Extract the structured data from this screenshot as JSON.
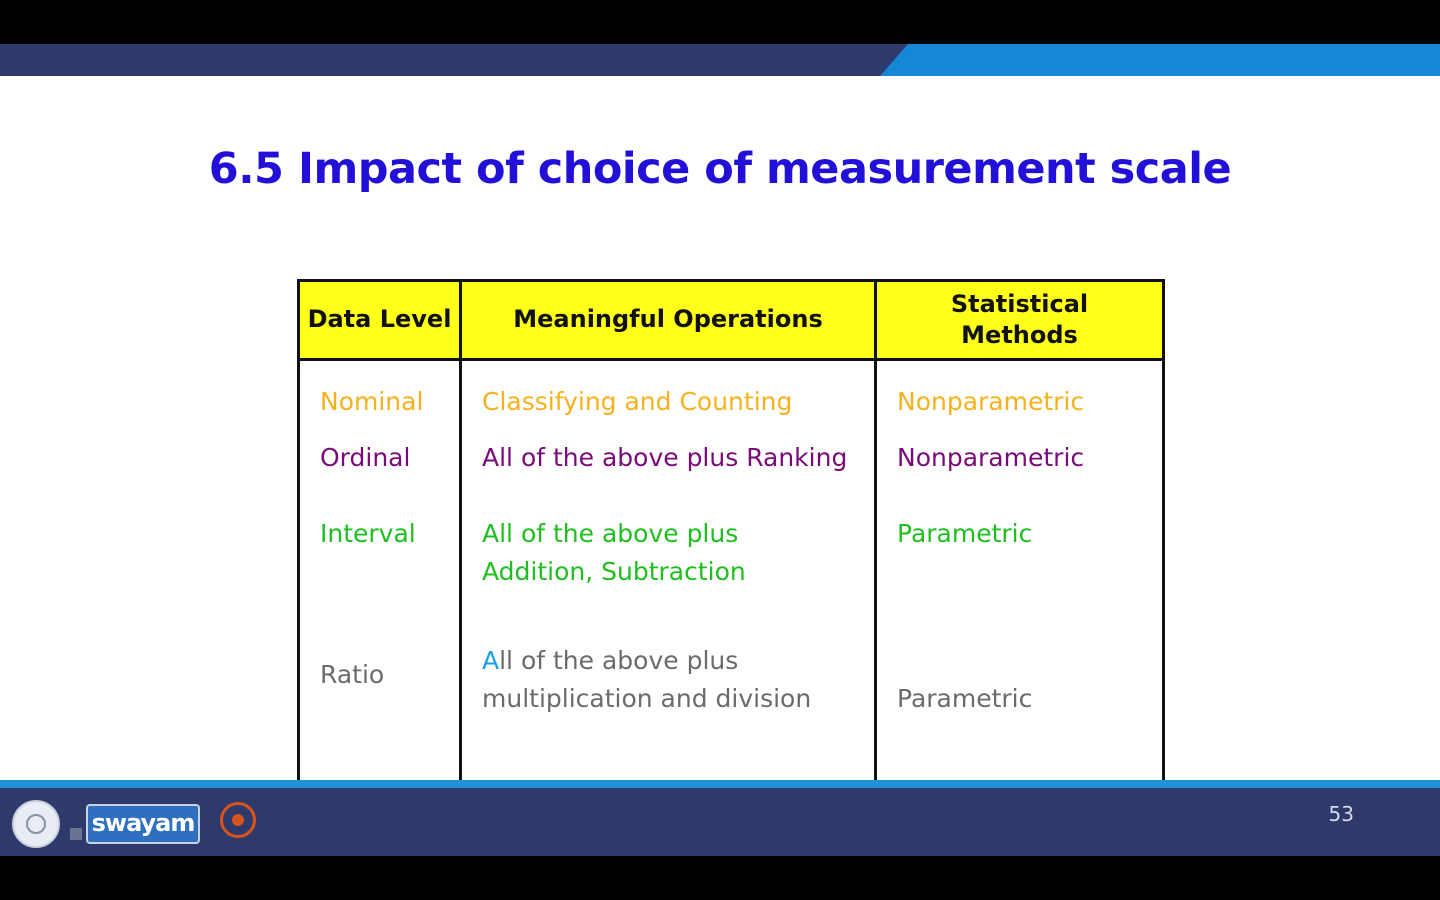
{
  "slide": {
    "title": "6.5 Impact of choice of measurement scale",
    "page_number": "53"
  },
  "table": {
    "headers": {
      "data_level": "Data Level",
      "operations": "Meaningful Operations",
      "methods_line1": "Statistical",
      "methods_line2": "Methods"
    },
    "rows": [
      {
        "level": "Nominal",
        "operations": "Classifying and Counting",
        "method": "Nonparametric",
        "color": "#f6b21d"
      },
      {
        "level": "Ordinal",
        "operations": "All of the above plus Ranking",
        "method": "Nonparametric",
        "color": "#7a0a7a"
      },
      {
        "level": "Interval",
        "operations_line1": "All of the above plus",
        "operations_line2": "Addition, Subtraction",
        "method": "Parametric",
        "color": "#1fbf1f"
      },
      {
        "level": "Ratio",
        "operations_first_letter": "A",
        "operations_line1_rest": "ll of the above plus",
        "operations_line2": "multiplication and division",
        "method": "Parametric",
        "color": "#6b6b6b"
      }
    ],
    "header_background": "#ffff1a"
  },
  "footer": {
    "logos": [
      "emblem-logo",
      "swayam-logo",
      "nptel-logo"
    ],
    "swayam_text": "swayam"
  },
  "colors": {
    "title": "#2210d8",
    "band": "#2f3a6c",
    "accent": "#1587d6"
  }
}
